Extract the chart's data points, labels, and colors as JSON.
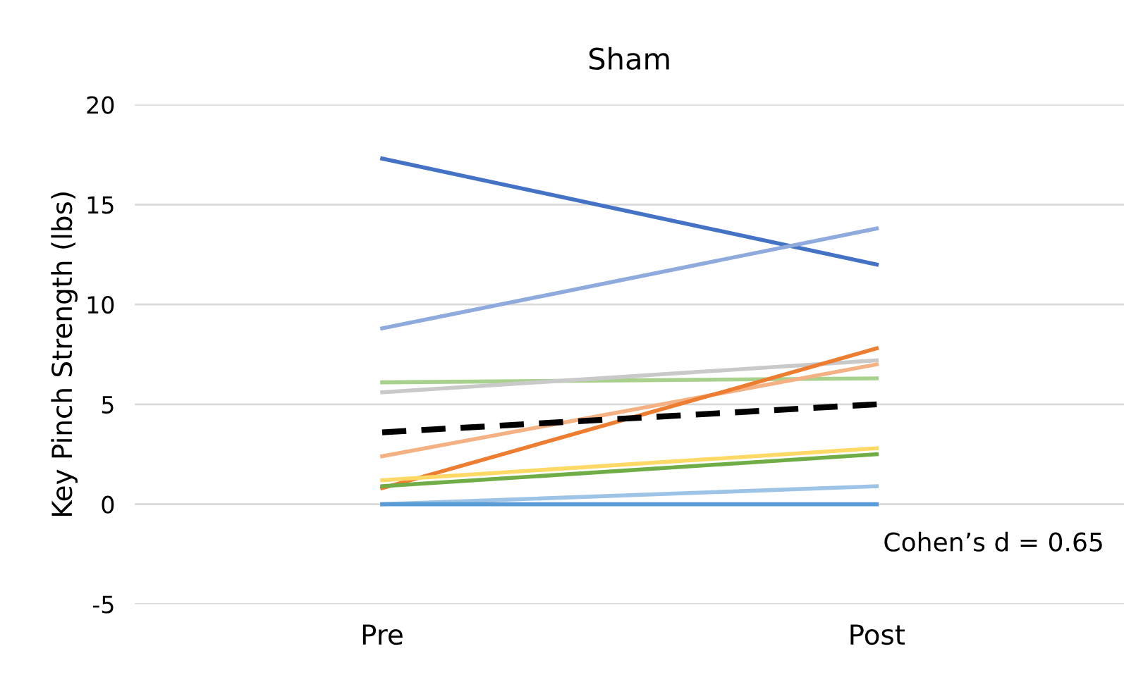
{
  "chart_data": {
    "type": "line",
    "title": "Sham",
    "ylabel": "Key Pinch Strength (lbs)",
    "categories": [
      "Pre",
      "Post"
    ],
    "series": [
      {
        "color": "#4472c4",
        "values": [
          17.3,
          12.0
        ]
      },
      {
        "color": "#8faadc",
        "values": [
          8.8,
          13.8
        ]
      },
      {
        "color": "#a9d18e",
        "values": [
          6.1,
          6.3
        ]
      },
      {
        "color": "#c9c9c9",
        "values": [
          5.6,
          7.2
        ]
      },
      {
        "color": "#f4b183",
        "values": [
          2.4,
          7.0
        ]
      },
      {
        "color": "#ed7d31",
        "values": [
          0.8,
          7.8
        ]
      },
      {
        "color": "#ffd966",
        "values": [
          1.2,
          2.8
        ]
      },
      {
        "color": "#70ad47",
        "values": [
          0.9,
          2.5
        ]
      },
      {
        "color": "#9dc3e6",
        "values": [
          0.0,
          0.9
        ]
      },
      {
        "color": "#5b9bd5",
        "values": [
          0.0,
          0.0
        ]
      },
      {
        "color": "#000000",
        "values": [
          3.6,
          5.0
        ],
        "line_style": "dashed"
      }
    ],
    "ylim": [
      -5,
      20
    ],
    "yticks": [
      -5,
      0,
      5,
      10,
      15,
      20
    ],
    "grid": "y",
    "legend": false,
    "annotations": [
      "Cohen’s d = 0.65"
    ]
  }
}
